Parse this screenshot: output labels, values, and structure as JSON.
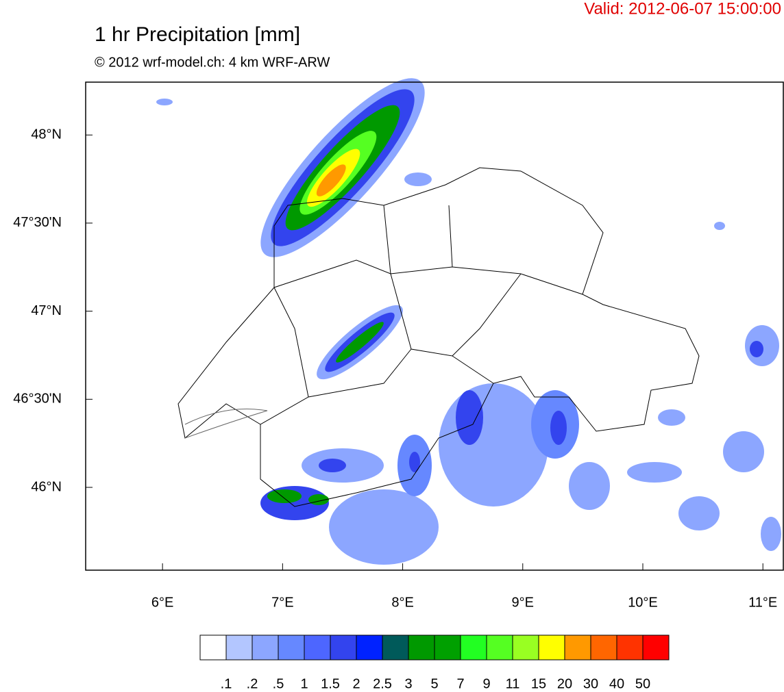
{
  "header": {
    "valid": "Valid: 2012-06-07 15:00:00",
    "title": "1 hr Precipitation [mm]",
    "subtitle": "© 2012 wrf-model.ch: 4 km WRF-ARW"
  },
  "map": {
    "xlim": [
      5.36,
      11.17
    ],
    "ylim": [
      45.53,
      48.3
    ],
    "xticks": [
      {
        "value": 6,
        "label": "6°E"
      },
      {
        "value": 7,
        "label": "7°E"
      },
      {
        "value": 8,
        "label": "8°E"
      },
      {
        "value": 9,
        "label": "9°E"
      },
      {
        "value": 10,
        "label": "10°E"
      },
      {
        "value": 11,
        "label": "11°E"
      }
    ],
    "yticks": [
      {
        "value": 46,
        "label": "46°N"
      },
      {
        "value": 46.5,
        "label": "46°30'N"
      },
      {
        "value": 47,
        "label": "47°N"
      },
      {
        "value": 47.5,
        "label": "47°30'N"
      },
      {
        "value": 48,
        "label": "48°N"
      }
    ]
  },
  "colorbar": {
    "colors": [
      "#ffffff",
      "#b3c6ff",
      "#8ca6ff",
      "#6688ff",
      "#4d66ff",
      "#3344ee",
      "#0022ff",
      "#005a5a",
      "#009900",
      "#00a000",
      "#22ff22",
      "#55ff22",
      "#99ff22",
      "#ffff00",
      "#ff9900",
      "#ff6600",
      "#ff3300",
      "#ff0000"
    ],
    "levels": [
      {
        "value": 0.1,
        "label": ".1"
      },
      {
        "value": 0.2,
        "label": ".2"
      },
      {
        "value": 0.5,
        "label": ".5"
      },
      1,
      1.5,
      2,
      2.5,
      3,
      5,
      7,
      9,
      11,
      15,
      20,
      30,
      40,
      50
    ]
  }
}
